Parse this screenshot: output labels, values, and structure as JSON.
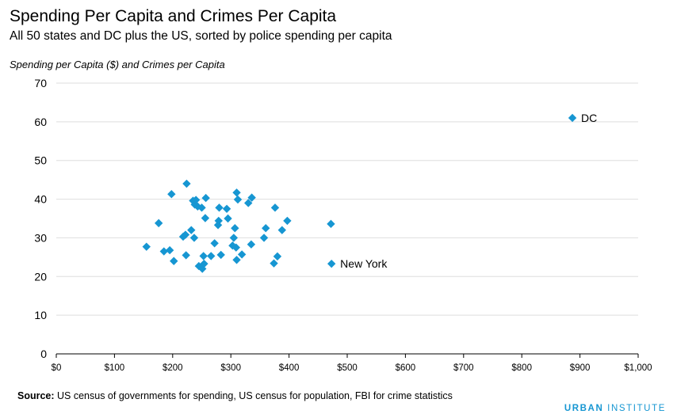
{
  "title": "Spending Per Capita and Crimes Per Capita",
  "subtitle": "All 50 states and DC plus the US, sorted by police spending per capita",
  "source": {
    "label": "Source:",
    "text": " US census of governments for spending, US census for population, FBI for crime statistics"
  },
  "brand": {
    "part1": "URBAN",
    "part2": " INSTITUTE"
  },
  "colors": {
    "marker": "#1696d2",
    "grid": "#dedede",
    "axis": "#000000"
  },
  "chart_data": {
    "type": "scatter",
    "title": "Spending Per Capita and Crimes Per Capita",
    "ylabel": "Spending per Capita ($) and Crimes per Capita",
    "xlabel": "",
    "xlim": [
      0,
      1000
    ],
    "ylim": [
      0,
      70
    ],
    "x_ticks": [
      0,
      100,
      200,
      300,
      400,
      500,
      600,
      700,
      800,
      900,
      1000
    ],
    "x_tick_labels": [
      "$0",
      "$100",
      "$200",
      "$300",
      "$400",
      "$500",
      "$600",
      "$700",
      "$800",
      "$900",
      "$1,000"
    ],
    "y_ticks": [
      0,
      10,
      20,
      30,
      40,
      50,
      60,
      70
    ],
    "y_tick_labels": [
      "0",
      "10",
      "20",
      "30",
      "40",
      "50",
      "60",
      "70"
    ],
    "grid": "horizontal",
    "points": [
      {
        "x": 155,
        "y": 27.7
      },
      {
        "x": 176,
        "y": 33.8
      },
      {
        "x": 185,
        "y": 26.5
      },
      {
        "x": 195,
        "y": 26.8
      },
      {
        "x": 198,
        "y": 41.3
      },
      {
        "x": 202,
        "y": 24.0
      },
      {
        "x": 218,
        "y": 30.3
      },
      {
        "x": 222,
        "y": 30.8
      },
      {
        "x": 223,
        "y": 25.5
      },
      {
        "x": 224,
        "y": 44.0
      },
      {
        "x": 232,
        "y": 32.0
      },
      {
        "x": 235,
        "y": 39.6
      },
      {
        "x": 237,
        "y": 30.0
      },
      {
        "x": 238,
        "y": 38.6
      },
      {
        "x": 240,
        "y": 39.8
      },
      {
        "x": 243,
        "y": 38.1
      },
      {
        "x": 245,
        "y": 22.7
      },
      {
        "x": 250,
        "y": 37.8
      },
      {
        "x": 251,
        "y": 22.0
      },
      {
        "x": 253,
        "y": 25.3
      },
      {
        "x": 254,
        "y": 23.3
      },
      {
        "x": 256,
        "y": 35.1
      },
      {
        "x": 257,
        "y": 40.3
      },
      {
        "x": 266,
        "y": 25.3
      },
      {
        "x": 272,
        "y": 28.6
      },
      {
        "x": 278,
        "y": 33.3
      },
      {
        "x": 279,
        "y": 34.4
      },
      {
        "x": 280,
        "y": 37.8
      },
      {
        "x": 283,
        "y": 25.6
      },
      {
        "x": 293,
        "y": 37.5
      },
      {
        "x": 295,
        "y": 35.0
      },
      {
        "x": 303,
        "y": 28.0
      },
      {
        "x": 305,
        "y": 30.0
      },
      {
        "x": 307,
        "y": 32.5
      },
      {
        "x": 309,
        "y": 27.5
      },
      {
        "x": 310,
        "y": 24.3
      },
      {
        "x": 310,
        "y": 41.7
      },
      {
        "x": 312,
        "y": 39.9
      },
      {
        "x": 319,
        "y": 25.7
      },
      {
        "x": 330,
        "y": 39.0
      },
      {
        "x": 335,
        "y": 28.3
      },
      {
        "x": 336,
        "y": 40.4
      },
      {
        "x": 357,
        "y": 30.0
      },
      {
        "x": 360,
        "y": 32.5
      },
      {
        "x": 374,
        "y": 23.4
      },
      {
        "x": 376,
        "y": 37.8
      },
      {
        "x": 380,
        "y": 25.2
      },
      {
        "x": 388,
        "y": 32.0
      },
      {
        "x": 397,
        "y": 34.4
      },
      {
        "x": 472,
        "y": 33.6
      },
      {
        "x": 473,
        "y": 23.3,
        "label": "New York"
      },
      {
        "x": 887,
        "y": 61.0,
        "label": "DC"
      }
    ]
  }
}
